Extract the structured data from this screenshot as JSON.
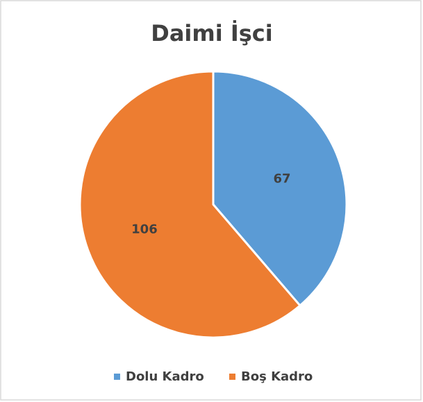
{
  "chart_data": {
    "type": "pie",
    "title": "Daimi İşci",
    "categories": [
      "Dolu Kadro",
      "Boş Kadro"
    ],
    "values": [
      67,
      106
    ],
    "colors": [
      "#5b9bd5",
      "#ed7d31"
    ],
    "legend": "bottom"
  }
}
